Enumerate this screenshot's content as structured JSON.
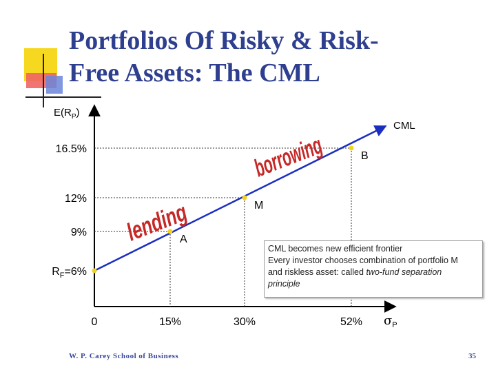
{
  "slide": {
    "title_line1": "Portfolios Of Risky & Risk-",
    "title_line2": "Free Assets: The CML",
    "footer": "W. P. Carey School of Business",
    "page_number": "35",
    "colors": {
      "title": "#2f3f8f",
      "accent_yellow": "#f7d820",
      "accent_red": "#f04a4a",
      "accent_blue": "#5a78d8"
    }
  },
  "note": {
    "line1": "CML becomes new efficient frontier",
    "line2": "Every investor chooses combination of portfolio M",
    "line3": "and riskless asset: called",
    "line3_italic": "two-fund separation",
    "line4": "principle"
  },
  "chart_data": {
    "type": "line",
    "ylabel_main": "E(R",
    "ylabel_sub": "P",
    "xlabel_symbol": "σ",
    "xlabel_sub": "P",
    "line_label": "CML",
    "x_ticks": [
      "0",
      "15%",
      "30%",
      "52%"
    ],
    "y_ticks": [
      {
        "label": "16.5%",
        "value": 16.5
      },
      {
        "label": "12%",
        "value": 12
      },
      {
        "label": "9%",
        "value": 9
      }
    ],
    "y_tick_rf": {
      "main": "R",
      "sub": "F",
      "rest": "=6%",
      "value": 6
    },
    "points": [
      {
        "name": "",
        "x": 0,
        "y": 6
      },
      {
        "name": "A",
        "x": 15,
        "y": 9
      },
      {
        "name": "M",
        "x": 30,
        "y": 12
      },
      {
        "name": "B",
        "x": 52,
        "y": 16.5
      }
    ],
    "line_end": {
      "x": 62,
      "y": 18.5
    },
    "region_labels": {
      "lending": "lending",
      "borrowing": "borrowing"
    },
    "colors": {
      "line": "#1a2fc0",
      "points": "#f2d21c",
      "region_text": "#c62828",
      "guides": "#333333"
    }
  }
}
